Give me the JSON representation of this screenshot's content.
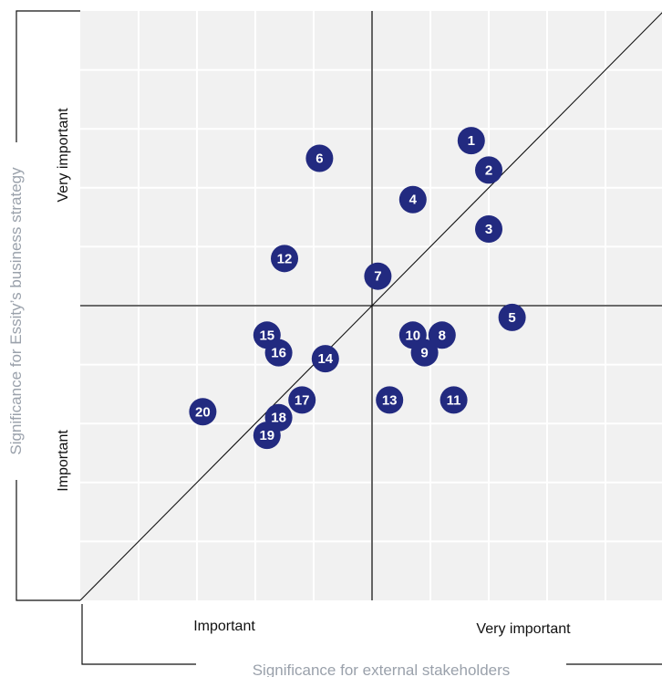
{
  "chart_data": {
    "type": "scatter",
    "xlabel": "Significance for external stakeholders",
    "ylabel": "Significance for Essity’s business strategy",
    "x_tick_labels": [
      "Important",
      "Very important"
    ],
    "y_tick_labels": [
      "Important",
      "Very important"
    ],
    "xlim": [
      0,
      10
    ],
    "ylim": [
      0,
      10
    ],
    "midline": 5,
    "diagonal": true,
    "grid": true,
    "point_color": "#222a80",
    "points": [
      {
        "label": "1",
        "x": 6.7,
        "y": 7.8
      },
      {
        "label": "2",
        "x": 7.0,
        "y": 7.3
      },
      {
        "label": "3",
        "x": 7.0,
        "y": 6.3
      },
      {
        "label": "4",
        "x": 5.7,
        "y": 6.8
      },
      {
        "label": "5",
        "x": 7.4,
        "y": 4.8
      },
      {
        "label": "6",
        "x": 4.1,
        "y": 7.5
      },
      {
        "label": "7",
        "x": 5.1,
        "y": 5.5
      },
      {
        "label": "8",
        "x": 6.2,
        "y": 4.5
      },
      {
        "label": "9",
        "x": 5.9,
        "y": 4.2
      },
      {
        "label": "10",
        "x": 5.7,
        "y": 4.5
      },
      {
        "label": "11",
        "x": 6.4,
        "y": 3.4
      },
      {
        "label": "12",
        "x": 3.5,
        "y": 5.8
      },
      {
        "label": "13",
        "x": 5.3,
        "y": 3.4
      },
      {
        "label": "14",
        "x": 4.2,
        "y": 4.1
      },
      {
        "label": "15",
        "x": 3.2,
        "y": 4.5
      },
      {
        "label": "16",
        "x": 3.4,
        "y": 4.2
      },
      {
        "label": "17",
        "x": 3.8,
        "y": 3.4
      },
      {
        "label": "18",
        "x": 3.4,
        "y": 3.1
      },
      {
        "label": "19",
        "x": 3.2,
        "y": 2.8
      },
      {
        "label": "20",
        "x": 2.1,
        "y": 3.2
      }
    ]
  }
}
